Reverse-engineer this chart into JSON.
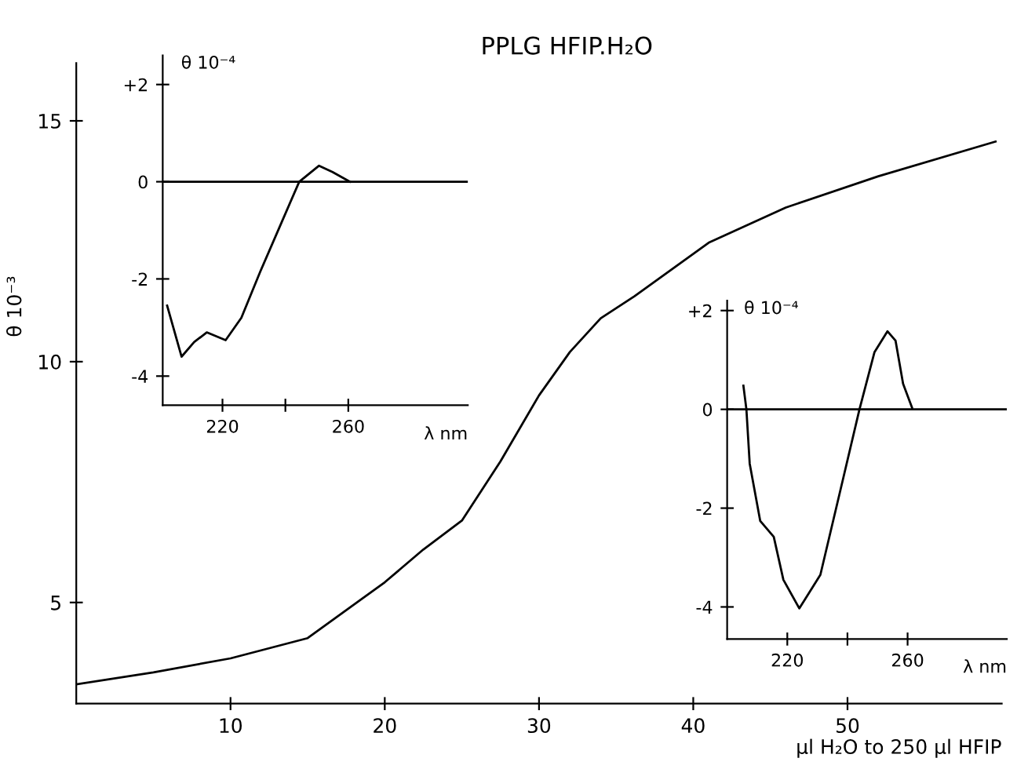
{
  "chart_data": [
    {
      "type": "line",
      "title": "PPLG HFIP.H₂O",
      "xlabel": "μl H₂O to 250 μl HFIP",
      "ylabel": "θ 10⁻³",
      "x": [
        0,
        5,
        10,
        15,
        20,
        22.5,
        25,
        27.5,
        30,
        32,
        34,
        36.2,
        41,
        46,
        52,
        59.6
      ],
      "series": [
        {
          "color": "#000000",
          "values": [
            3.3,
            3.55,
            3.84,
            4.26,
            5.42,
            6.1,
            6.7,
            7.93,
            9.3,
            10.2,
            10.9,
            11.36,
            12.47,
            13.2,
            13.85,
            14.57
          ]
        }
      ],
      "xlim": [
        0,
        60
      ],
      "ylim": [
        2.9,
        16.2
      ],
      "xticks": [
        10,
        20,
        30,
        40,
        50
      ],
      "yticks": [
        5,
        10,
        15
      ],
      "grid": false,
      "legend": false
    },
    {
      "type": "line",
      "xlabel": "λ nm",
      "ylabel": "θ 10⁻⁴",
      "x": [
        202.4,
        207,
        211,
        215,
        221,
        226,
        232,
        238.5,
        244.4,
        250.7,
        255,
        260.5
      ],
      "series": [
        {
          "color": "#000000",
          "values": [
            -2.55,
            -3.6,
            -3.3,
            -3.1,
            -3.26,
            -2.8,
            -1.85,
            -0.88,
            0,
            0.33,
            0.2,
            0
          ]
        }
      ],
      "xlim": [
        201,
        298
      ],
      "ylim": [
        -4.6,
        2.6
      ],
      "xticks": [
        220,
        {
          "value": 240,
          "label": null
        },
        260
      ],
      "yticks": [
        {
          "value": 2,
          "label": "+2"
        },
        0,
        -2,
        -4
      ],
      "ref_lines": [
        {
          "axis": "y",
          "value": 0,
          "color": "#000000"
        }
      ],
      "grid": false,
      "legend": false
    },
    {
      "type": "line",
      "xlabel": "λ nm",
      "ylabel": "θ 10⁻⁴",
      "x": [
        205.4,
        206.4,
        207.5,
        211,
        215.5,
        218.7,
        224,
        231,
        238.5,
        244,
        249,
        253.3,
        256,
        258.5,
        261.5
      ],
      "series": [
        {
          "color": "#000000",
          "values": [
            0.48,
            0,
            -1.1,
            -2.26,
            -2.58,
            -3.45,
            -4.03,
            -3.35,
            -1.42,
            0,
            1.16,
            1.58,
            1.39,
            0.52,
            0.03
          ]
        }
      ],
      "xlim": [
        200,
        293
      ],
      "ylim": [
        -4.65,
        2.2
      ],
      "xticks": [
        220,
        {
          "value": 240,
          "label": null
        },
        260
      ],
      "yticks": [
        {
          "value": 2,
          "label": "+2"
        },
        0,
        -2,
        -4
      ],
      "ref_lines": [
        {
          "axis": "y",
          "value": 0,
          "color": "#000000"
        }
      ],
      "grid": false,
      "legend": false
    }
  ]
}
